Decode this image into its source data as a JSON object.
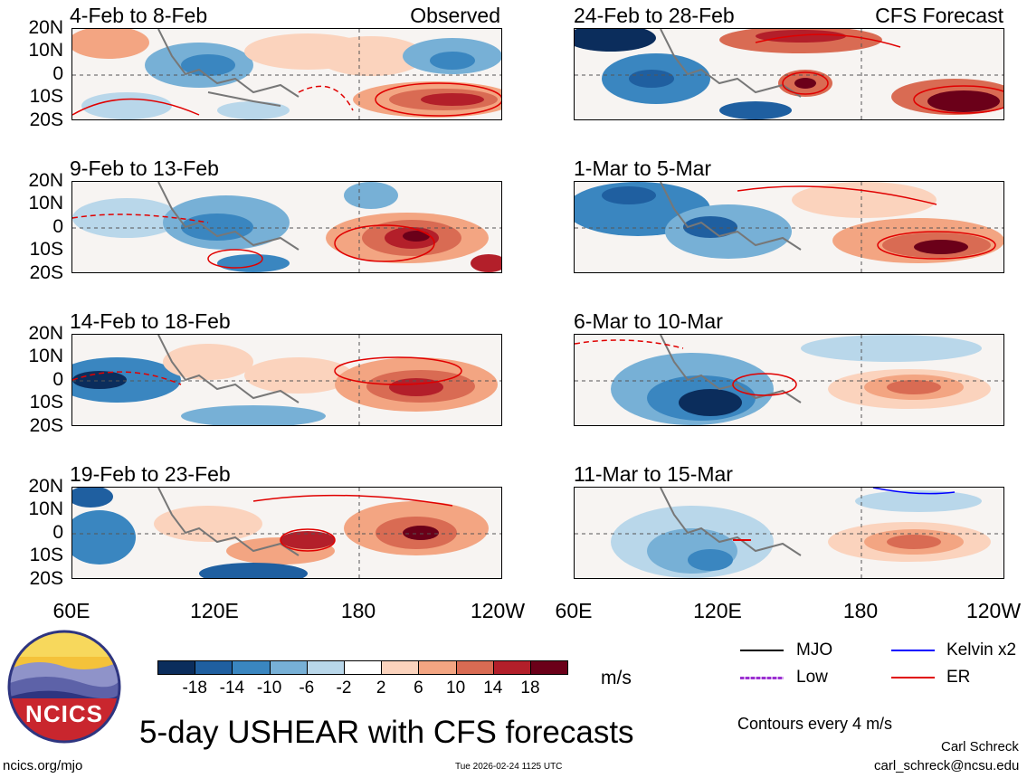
{
  "panels": [
    {
      "title": "4-Feb to 8-Feb",
      "tag": "Observed",
      "column": "left",
      "row": 0
    },
    {
      "title": "9-Feb to 13-Feb",
      "tag": "",
      "column": "left",
      "row": 1
    },
    {
      "title": "14-Feb to 18-Feb",
      "tag": "",
      "column": "left",
      "row": 2
    },
    {
      "title": "19-Feb to 23-Feb",
      "tag": "",
      "column": "left",
      "row": 3
    },
    {
      "title": "24-Feb to 28-Feb",
      "tag": "CFS Forecast",
      "column": "right",
      "row": 0
    },
    {
      "title": "1-Mar to 5-Mar",
      "tag": "",
      "column": "right",
      "row": 1
    },
    {
      "title": "6-Mar to 10-Mar",
      "tag": "",
      "column": "right",
      "row": 2
    },
    {
      "title": "11-Mar to 15-Mar",
      "tag": "",
      "column": "right",
      "row": 3
    }
  ],
  "lat_labels": [
    "20N",
    "10N",
    "0",
    "10S",
    "20S"
  ],
  "lon_labels": [
    "60E",
    "120E",
    "180",
    "120W"
  ],
  "colorbar": {
    "colors": [
      "#0b2d5c",
      "#1f5fa0",
      "#3a86c0",
      "#77b0d6",
      "#b9d7ea",
      "#ffffff",
      "#fbd3bd",
      "#f3a582",
      "#d96b53",
      "#b31f2a",
      "#6b0019"
    ],
    "labels": [
      "-18",
      "-14",
      "-10",
      "-6",
      "-2",
      "2",
      "6",
      "10",
      "14",
      "18"
    ],
    "units": "m/s"
  },
  "legend": {
    "mjo": {
      "label": "MJO",
      "color": "#000000"
    },
    "kelvin": {
      "label": "Kelvin x2",
      "color": "#0000ff"
    },
    "low": {
      "label": "Low",
      "color": "#9b30d0"
    },
    "er": {
      "label": "ER",
      "color": "#e00000"
    },
    "contours": "Contours every 4 m/s"
  },
  "logo": {
    "text": "NCICS"
  },
  "main_title": "5-day USHEAR with CFS forecasts",
  "footer": {
    "url": "ncics.org/mjo",
    "timestamp": "Tue 2026-02-24 1125 UTC",
    "author": "Carl Schreck",
    "email": "carl_schreck@ncsu.edu"
  }
}
